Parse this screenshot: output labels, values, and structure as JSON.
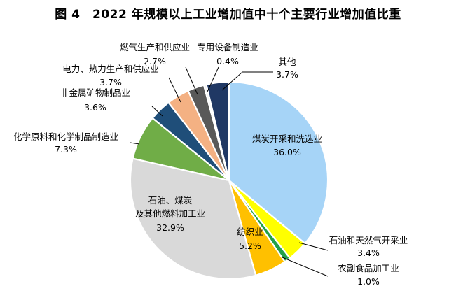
{
  "chart_data": {
    "type": "pie",
    "title": "图 4　2022 年规模以上工业增加值中十个主要行业增加值比重",
    "unit": "%",
    "slices": [
      {
        "name": "煤炭开采和洗选业",
        "value": 36.0,
        "label": "36.0%",
        "color": "#A6D4F7"
      },
      {
        "name": "石油和天然气开采业",
        "value": 3.4,
        "label": "3.4%",
        "color": "#FFFF00"
      },
      {
        "name": "农副食品加工业",
        "value": 1.0,
        "label": "1.0%",
        "color": "#22A04A"
      },
      {
        "name": "纺织业",
        "value": 5.2,
        "label": "5.2%",
        "color": "#FFC000"
      },
      {
        "name": "石油、煤炭及其他燃料加工业",
        "value": 32.9,
        "label": "32.9%",
        "color": "#D9D9D9"
      },
      {
        "name": "化学原料和化学制品制造业",
        "value": 7.3,
        "label": "7.3%",
        "color": "#70AD47"
      },
      {
        "name": "非金属矿物制品业",
        "value": 3.6,
        "label": "3.6%",
        "color": "#1F4E79"
      },
      {
        "name": "电力、热力生产和供应业",
        "value": 3.7,
        "label": "3.7%",
        "color": "#F4B183"
      },
      {
        "name": "燃气生产和供应业",
        "value": 2.7,
        "label": "2.7%",
        "color": "#595959"
      },
      {
        "name": "专用设备制造业",
        "value": 0.4,
        "label": "0.4%",
        "color": "#F2F2F2"
      },
      {
        "name": "其他",
        "value": 3.7,
        "label": "3.7%",
        "color": "#203864"
      }
    ]
  }
}
